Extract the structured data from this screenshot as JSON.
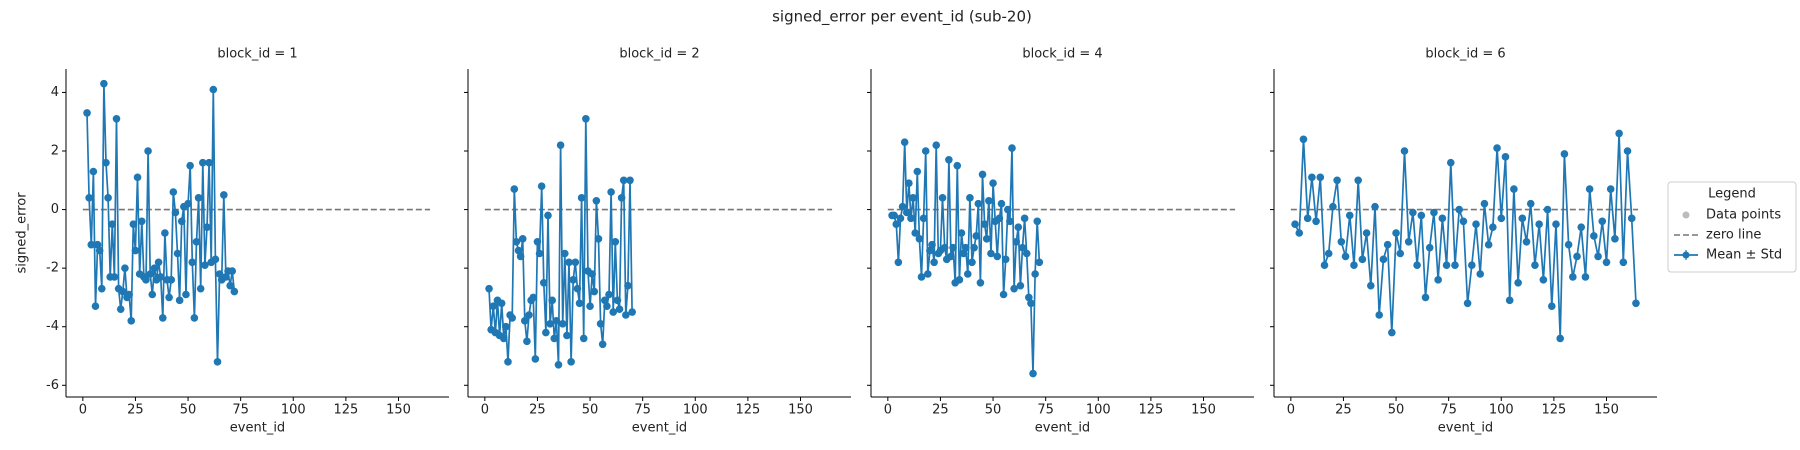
{
  "title": "signed_error per event_id (sub-20)",
  "legend": {
    "title": "Legend",
    "entries": [
      {
        "label": "Data points",
        "color": "#bbbbbb"
      },
      {
        "label": "zero line",
        "color": "#777777"
      },
      {
        "label": "Mean ± Std",
        "color": "#1f77b4"
      }
    ]
  },
  "chart_data": [
    {
      "type": "line",
      "title": "block_id = 1",
      "xlabel": "event_id",
      "ylabel": "signed_error",
      "color": "#1f77b4",
      "xlim": [
        -8,
        174
      ],
      "ylim": [
        -6.4,
        4.8
      ],
      "xticks": [
        0,
        25,
        50,
        75,
        100,
        125,
        150
      ],
      "yticks": [
        -6,
        -4,
        -2,
        0,
        2,
        4
      ],
      "zero_line": {
        "y": 0,
        "x": [
          0,
          165
        ]
      },
      "x": [
        2,
        3,
        4,
        5,
        6,
        7,
        8,
        9,
        10,
        11,
        12,
        13,
        14,
        15,
        16,
        17,
        18,
        19,
        20,
        21,
        22,
        23,
        24,
        25,
        26,
        27,
        28,
        29,
        30,
        31,
        32,
        33,
        34,
        35,
        36,
        37,
        38,
        39,
        40,
        41,
        42,
        43,
        44,
        45,
        46,
        47,
        48,
        49,
        50,
        51,
        52,
        53,
        54,
        55,
        56,
        57,
        58,
        59,
        60,
        61,
        62,
        63,
        64,
        65,
        66,
        67,
        68,
        69,
        70,
        71,
        72
      ],
      "values": [
        3.3,
        0.4,
        -1.2,
        1.3,
        -3.3,
        -1.2,
        -1.4,
        -2.7,
        4.3,
        1.6,
        0.4,
        -2.3,
        -0.5,
        -2.3,
        3.1,
        -2.7,
        -3.4,
        -2.8,
        -2.0,
        -3.0,
        -2.9,
        -3.8,
        -0.5,
        -1.4,
        1.1,
        -2.2,
        -0.4,
        -2.3,
        -2.4,
        2.0,
        -2.2,
        -2.9,
        -2.0,
        -2.4,
        -1.8,
        -2.3,
        -3.7,
        -0.8,
        -2.4,
        -3.0,
        -2.4,
        0.6,
        -0.1,
        -1.5,
        -3.1,
        -0.4,
        0.1,
        -2.9,
        0.2,
        1.5,
        -1.8,
        -3.7,
        -1.1,
        0.4,
        -2.7,
        1.6,
        -1.9,
        -0.6,
        1.6,
        -1.8,
        4.1,
        -1.7,
        -5.2,
        -2.2,
        -2.4,
        0.5,
        -2.3,
        -2.1,
        -2.6,
        -2.1,
        -2.8
      ]
    },
    {
      "type": "line",
      "title": "block_id = 2",
      "xlabel": "event_id",
      "color": "#1f77b4",
      "xlim": [
        -8,
        174
      ],
      "ylim": [
        -6.4,
        4.8
      ],
      "xticks": [
        0,
        25,
        50,
        75,
        100,
        125,
        150
      ],
      "yticks": [
        -6,
        -4,
        -2,
        0,
        2,
        4
      ],
      "zero_line": {
        "y": 0,
        "x": [
          0,
          165
        ]
      },
      "x": [
        2,
        3,
        4,
        5,
        6,
        7,
        8,
        9,
        10,
        11,
        12,
        13,
        14,
        15,
        16,
        17,
        18,
        19,
        20,
        21,
        22,
        23,
        24,
        25,
        26,
        27,
        28,
        29,
        30,
        31,
        32,
        33,
        34,
        35,
        36,
        37,
        38,
        39,
        40,
        41,
        42,
        43,
        44,
        45,
        46,
        47,
        48,
        49,
        50,
        51,
        52,
        53,
        54,
        55,
        56,
        57,
        58,
        59,
        60,
        61,
        62,
        63,
        64,
        65,
        66,
        67,
        68,
        69,
        70
      ],
      "values": [
        -2.7,
        -4.1,
        -3.3,
        -4.2,
        -3.1,
        -4.3,
        -3.2,
        -4.4,
        -4.0,
        -5.2,
        -3.6,
        -3.7,
        0.7,
        -1.1,
        -1.4,
        -1.6,
        -1.0,
        -3.8,
        -4.5,
        -3.6,
        -3.1,
        -3.0,
        -5.1,
        -1.1,
        -1.5,
        0.8,
        -2.5,
        -4.2,
        -0.2,
        -3.9,
        -3.1,
        -4.4,
        -3.8,
        -5.3,
        2.2,
        -3.9,
        -1.5,
        -4.3,
        -1.8,
        -5.2,
        -2.4,
        -1.8,
        -2.7,
        -3.2,
        0.4,
        -4.4,
        3.1,
        -2.1,
        -3.3,
        -2.2,
        -2.8,
        0.3,
        -1.0,
        -3.9,
        -4.6,
        -3.1,
        -3.3,
        -2.9,
        0.6,
        -3.5,
        -1.1,
        -3.1,
        -3.4,
        0.4,
        1.0,
        -3.6,
        -2.6,
        1.0,
        -3.5
      ]
    },
    {
      "type": "line",
      "title": "block_id = 4",
      "xlabel": "event_id",
      "color": "#1f77b4",
      "xlim": [
        -8,
        174
      ],
      "ylim": [
        -6.4,
        4.8
      ],
      "xticks": [
        0,
        25,
        50,
        75,
        100,
        125,
        150
      ],
      "yticks": [
        -6,
        -4,
        -2,
        0,
        2,
        4
      ],
      "zero_line": {
        "y": 0,
        "x": [
          0,
          165
        ]
      },
      "x": [
        2,
        3,
        4,
        5,
        6,
        7,
        8,
        9,
        10,
        11,
        12,
        13,
        14,
        15,
        16,
        17,
        18,
        19,
        20,
        21,
        22,
        23,
        24,
        25,
        26,
        27,
        28,
        29,
        30,
        31,
        32,
        33,
        34,
        35,
        36,
        37,
        38,
        39,
        40,
        41,
        42,
        43,
        44,
        45,
        46,
        47,
        48,
        49,
        50,
        51,
        52,
        53,
        54,
        55,
        56,
        57,
        58,
        59,
        60,
        61,
        62,
        63,
        64,
        65,
        66,
        67,
        68,
        69,
        70,
        71,
        72
      ],
      "values": [
        -0.2,
        -0.2,
        -0.5,
        -1.8,
        -0.3,
        0.1,
        2.3,
        -0.1,
        0.9,
        -0.3,
        0.4,
        -0.8,
        1.3,
        -1.0,
        -2.3,
        -0.3,
        2.0,
        -2.2,
        -1.4,
        -1.2,
        -1.8,
        2.2,
        -1.5,
        -1.4,
        0.4,
        -1.3,
        -1.7,
        1.7,
        -1.6,
        -1.3,
        -2.5,
        1.5,
        -2.4,
        -0.8,
        -1.5,
        -1.3,
        -2.2,
        0.4,
        -1.8,
        -1.3,
        -0.9,
        0.2,
        -2.5,
        1.2,
        -0.5,
        -1.0,
        0.3,
        -1.5,
        0.9,
        -0.4,
        -1.6,
        -0.3,
        0.2,
        -2.9,
        -1.7,
        0.0,
        -0.4,
        2.1,
        -2.7,
        -1.1,
        -0.6,
        -2.6,
        -1.3,
        -0.3,
        -1.5,
        -3.0,
        -3.2,
        -5.6,
        -2.2,
        -0.4,
        -1.8
      ]
    },
    {
      "type": "line",
      "title": "block_id = 6",
      "xlabel": "event_id",
      "color": "#1f77b4",
      "xlim": [
        -8,
        174
      ],
      "ylim": [
        -6.4,
        4.8
      ],
      "xticks": [
        0,
        25,
        50,
        75,
        100,
        125,
        150
      ],
      "yticks": [
        -6,
        -4,
        -2,
        0,
        2,
        4
      ],
      "zero_line": {
        "y": 0,
        "x": [
          0,
          165
        ]
      },
      "x": [
        2,
        4,
        6,
        8,
        10,
        12,
        14,
        16,
        18,
        20,
        22,
        24,
        26,
        28,
        30,
        32,
        34,
        36,
        38,
        40,
        42,
        44,
        46,
        48,
        50,
        52,
        54,
        56,
        58,
        60,
        62,
        64,
        66,
        68,
        70,
        72,
        74,
        76,
        78,
        80,
        82,
        84,
        86,
        88,
        90,
        92,
        94,
        96,
        98,
        100,
        102,
        104,
        106,
        108,
        110,
        112,
        114,
        116,
        118,
        120,
        122,
        124,
        126,
        128,
        130,
        132,
        134,
        136,
        138,
        140,
        142,
        144,
        146,
        148,
        150,
        152,
        154,
        156,
        158,
        160,
        162,
        164
      ],
      "values": [
        -0.5,
        -0.8,
        2.4,
        -0.3,
        1.1,
        -0.4,
        1.1,
        -1.9,
        -1.5,
        0.1,
        1.0,
        -1.1,
        -1.6,
        -0.2,
        -1.9,
        1.0,
        -1.7,
        -0.8,
        -2.6,
        0.1,
        -3.6,
        -1.7,
        -1.2,
        -4.2,
        -0.8,
        -1.5,
        2.0,
        -1.1,
        -0.1,
        -1.9,
        -0.2,
        -3.0,
        -1.3,
        -0.1,
        -2.4,
        -0.3,
        -1.9,
        1.6,
        -1.9,
        0.0,
        -0.4,
        -3.2,
        -1.9,
        -0.5,
        -2.2,
        0.2,
        -1.2,
        -0.6,
        2.1,
        -0.3,
        1.8,
        -3.1,
        0.7,
        -2.5,
        -0.3,
        -1.1,
        0.2,
        -1.9,
        -0.5,
        -2.4,
        0.0,
        -3.3,
        -0.5,
        -4.4,
        1.9,
        -1.2,
        -2.3,
        -1.6,
        -0.6,
        -2.3,
        0.7,
        -0.9,
        -1.6,
        -0.4,
        -1.8,
        0.7,
        -1.0,
        2.6,
        -1.8,
        2.0,
        -0.3,
        -3.2
      ]
    }
  ]
}
